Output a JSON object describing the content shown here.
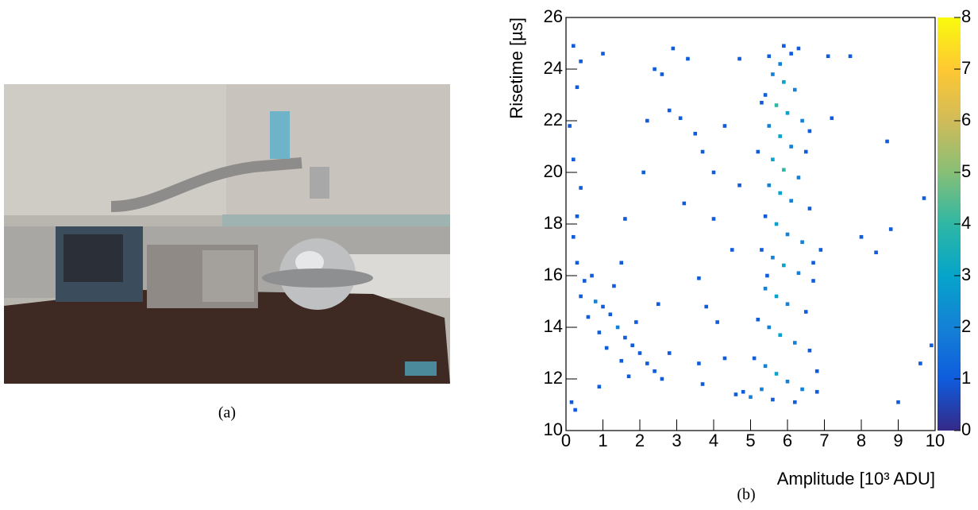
{
  "figure": {
    "caption_a": "(a)",
    "caption_b": "(b)"
  },
  "chart_data": {
    "type": "heatmap",
    "x_label": "Amplitude [10³ ADU]",
    "y_label": "Risetime [µs]",
    "xlim": [
      0,
      10
    ],
    "xticks": [
      0,
      1,
      2,
      3,
      4,
      5,
      6,
      7,
      8,
      9,
      10
    ],
    "ylim": [
      10,
      26
    ],
    "yticks": [
      10,
      12,
      14,
      16,
      18,
      20,
      22,
      24,
      26
    ],
    "zlim": [
      0,
      8
    ],
    "zticks": [
      0,
      1,
      2,
      3,
      4,
      5,
      6,
      7,
      8
    ],
    "palette": [
      "#352a87",
      "#0f5cdd",
      "#1481d6",
      "#06a4ca",
      "#2eb7a4",
      "#87bf77",
      "#d1bb59",
      "#fec832",
      "#f9fb0e"
    ],
    "x": [
      5.5,
      5.8,
      6.1,
      5.6,
      5.9,
      6.2,
      5.4,
      5.7,
      6.0,
      6.4,
      5.5,
      5.8,
      6.1,
      6.5,
      5.6,
      5.9,
      6.3,
      5.5,
      5.8,
      6.1,
      6.6,
      5.4,
      5.7,
      6.0,
      6.4,
      5.3,
      5.6,
      5.9,
      6.3,
      6.7,
      5.4,
      5.7,
      6.0,
      6.5,
      5.2,
      5.5,
      5.8,
      6.2,
      6.6,
      5.1,
      5.4,
      5.7,
      6.0,
      6.4,
      4.8,
      5.0,
      5.3,
      4.6,
      5.6,
      6.2,
      6.8,
      6.7,
      6.8,
      5.2,
      5.3,
      6.6,
      6.9,
      5.9,
      6.3,
      5.45,
      0.3,
      0.5,
      0.7,
      0.4,
      0.8,
      1.0,
      0.6,
      1.2,
      1.4,
      0.9,
      1.6,
      1.1,
      1.8,
      2.0,
      1.5,
      2.2,
      2.4,
      1.7,
      2.6,
      0.2,
      0.3,
      0.4,
      0.2,
      0.1,
      0.3,
      0.2,
      1.3,
      1.5,
      2.5,
      2.8,
      1.9,
      0.15,
      0.25,
      0.9,
      2.4,
      2.6,
      2.9,
      3.3,
      1.0,
      0.4,
      2.8,
      3.1,
      3.5,
      3.7,
      4.0,
      4.3,
      4.7,
      3.2,
      2.1,
      2.2,
      1.6,
      4.0,
      4.5,
      3.6,
      4.1,
      3.6,
      3.7,
      4.3,
      3.8,
      8.0,
      8.4,
      8.8,
      9.7,
      7.2,
      7.7,
      9.9,
      9.6,
      9.0,
      8.7,
      4.7,
      7.1
    ],
    "y": [
      24.5,
      24.2,
      24.6,
      23.8,
      23.5,
      23.2,
      23.0,
      22.6,
      22.3,
      22.0,
      21.8,
      21.4,
      21.0,
      20.8,
      20.5,
      20.1,
      19.8,
      19.5,
      19.2,
      18.9,
      18.6,
      18.3,
      18.0,
      17.6,
      17.3,
      17.0,
      16.7,
      16.4,
      16.1,
      15.8,
      15.5,
      15.2,
      14.9,
      14.6,
      14.3,
      14.0,
      13.7,
      13.4,
      13.1,
      12.8,
      12.5,
      12.2,
      11.9,
      11.6,
      11.5,
      11.3,
      11.6,
      11.4,
      11.2,
      11.1,
      11.5,
      16.5,
      12.3,
      20.8,
      22.7,
      21.6,
      17.0,
      24.9,
      24.8,
      16.0,
      16.5,
      15.8,
      16.0,
      15.2,
      15.0,
      14.8,
      14.4,
      14.5,
      14.0,
      13.8,
      13.6,
      13.2,
      13.3,
      13.0,
      12.7,
      12.6,
      12.3,
      12.1,
      12.0,
      17.5,
      18.3,
      19.4,
      20.5,
      21.8,
      23.3,
      24.9,
      15.6,
      16.5,
      14.9,
      13.0,
      14.2,
      11.1,
      10.8,
      11.7,
      24.0,
      23.8,
      24.8,
      24.4,
      24.6,
      24.3,
      22.4,
      22.1,
      21.5,
      20.8,
      20.0,
      21.8,
      19.5,
      18.8,
      20.0,
      22.0,
      18.2,
      18.2,
      17.0,
      15.9,
      14.2,
      12.6,
      11.8,
      12.8,
      14.8,
      17.5,
      16.9,
      17.8,
      19.0,
      22.1,
      24.5,
      13.3,
      12.6,
      11.1,
      21.2,
      24.4,
      24.5
    ],
    "values": [
      1,
      2,
      1,
      2,
      3,
      2,
      1,
      4,
      3,
      2,
      2,
      3,
      2,
      1,
      3,
      4,
      2,
      2,
      3,
      2,
      1,
      1,
      3,
      2,
      2,
      1,
      2,
      3,
      2,
      1,
      2,
      3,
      2,
      1,
      1,
      2,
      3,
      2,
      1,
      1,
      2,
      3,
      2,
      2,
      1,
      2,
      2,
      1,
      1,
      1,
      1,
      1,
      1,
      1,
      1,
      1,
      1,
      1,
      1,
      1,
      1,
      1,
      1,
      1,
      2,
      1,
      1,
      1,
      2,
      1,
      1,
      1,
      1,
      1,
      1,
      1,
      1,
      1,
      1,
      1,
      1,
      1,
      1,
      1,
      1,
      1,
      1,
      1,
      1,
      1,
      1,
      1,
      1,
      1,
      1,
      1,
      1,
      1,
      1,
      1,
      1,
      1,
      1,
      1,
      1,
      1,
      1,
      1,
      1,
      1,
      1,
      1,
      1,
      1,
      1,
      1,
      1,
      1,
      1,
      1,
      1,
      1,
      1,
      1,
      1,
      1,
      1,
      1,
      1,
      1,
      1
    ]
  }
}
